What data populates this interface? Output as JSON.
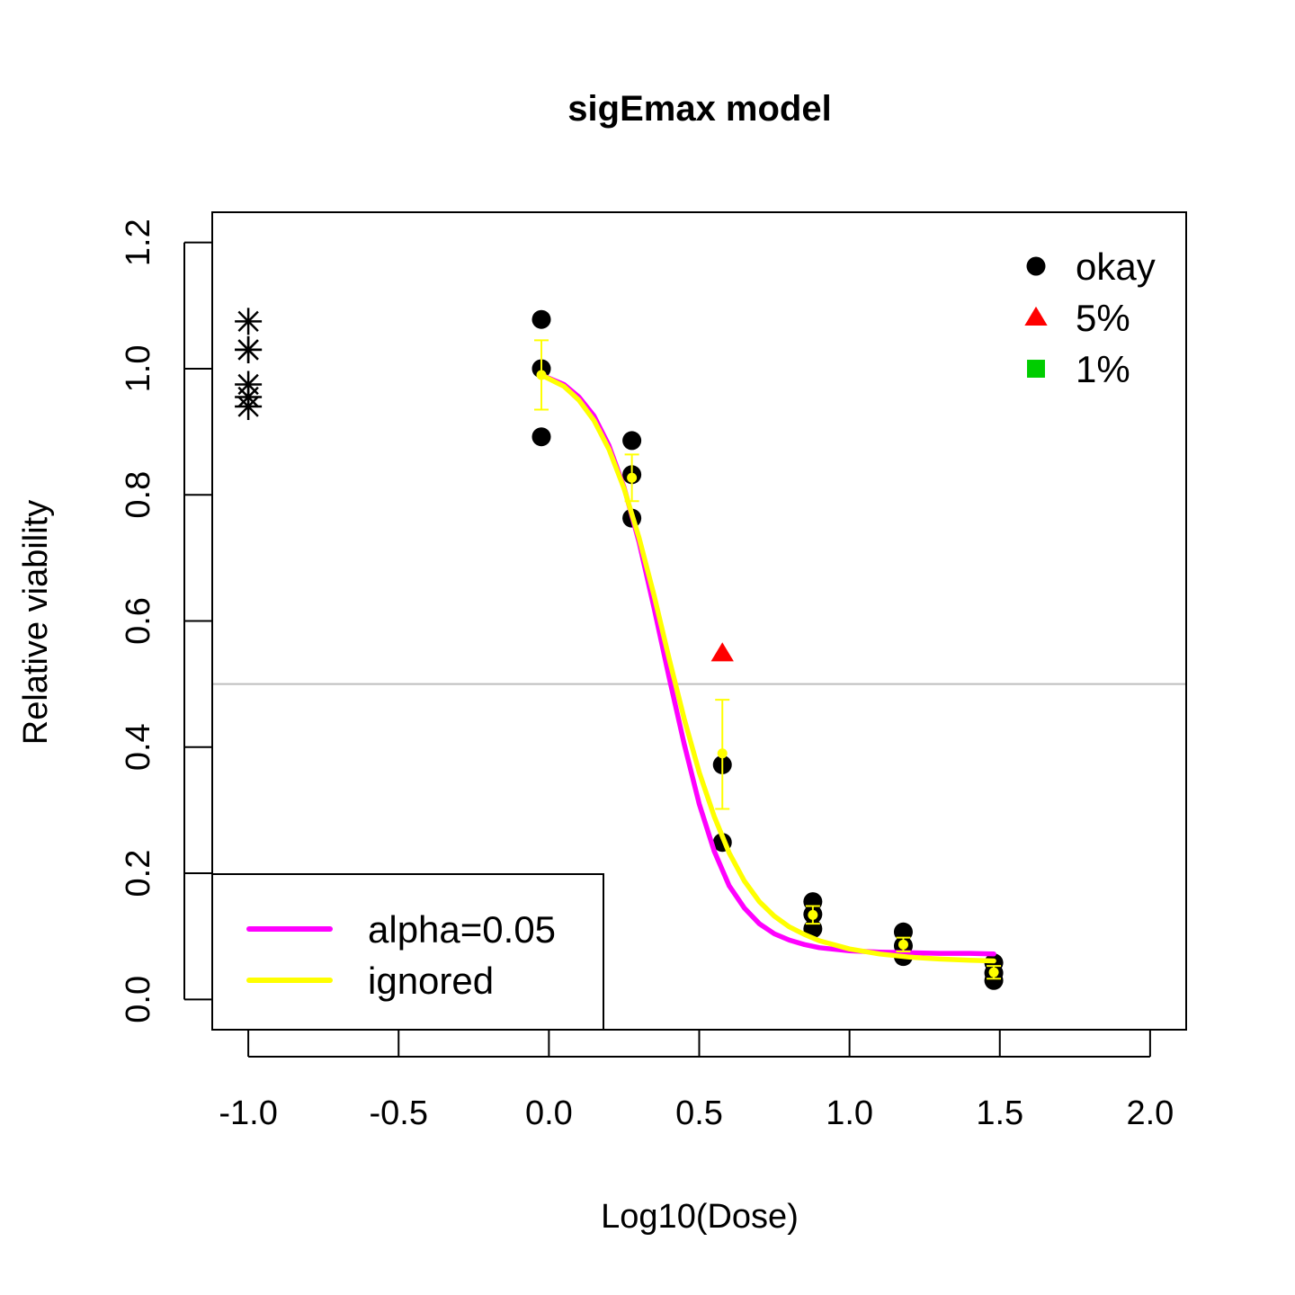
{
  "chart_data": {
    "type": "scatter",
    "title": "sigEmax model",
    "xlabel": "Log10(Dose)",
    "ylabel": "Relative viability",
    "xlim": [
      -1.12,
      2.12
    ],
    "ylim": [
      -0.048,
      1.248
    ],
    "xticks": [
      -1.0,
      -0.5,
      0.0,
      0.5,
      1.0,
      1.5,
      2.0
    ],
    "xtick_labels": [
      "-1.0",
      "-0.5",
      "0.0",
      "0.5",
      "1.0",
      "1.5",
      "2.0"
    ],
    "yticks": [
      0.0,
      0.2,
      0.4,
      0.6,
      0.8,
      1.0,
      1.2
    ],
    "ytick_labels": [
      "0.0",
      "0.2",
      "0.4",
      "0.6",
      "0.8",
      "1.0",
      "1.2"
    ],
    "reference_line": {
      "y": 0.5,
      "color": "#bebebe"
    },
    "control_points": {
      "marker": "asterisk",
      "color": "#000000",
      "x": -1.0,
      "y": [
        1.075,
        1.03,
        1.03,
        0.975,
        0.955,
        0.94
      ]
    },
    "points": [
      {
        "status": "okay",
        "x": -0.025,
        "y": 1.078
      },
      {
        "status": "okay",
        "x": -0.025,
        "y": 1.0
      },
      {
        "status": "okay",
        "x": -0.025,
        "y": 0.892
      },
      {
        "status": "okay",
        "x": 0.276,
        "y": 0.886
      },
      {
        "status": "okay",
        "x": 0.276,
        "y": 0.832
      },
      {
        "status": "okay",
        "x": 0.276,
        "y": 0.763
      },
      {
        "status": "5%",
        "x": 0.577,
        "y": 0.549
      },
      {
        "status": "okay",
        "x": 0.577,
        "y": 0.372
      },
      {
        "status": "okay",
        "x": 0.577,
        "y": 0.249
      },
      {
        "status": "okay",
        "x": 0.878,
        "y": 0.155
      },
      {
        "status": "okay",
        "x": 0.878,
        "y": 0.135
      },
      {
        "status": "okay",
        "x": 0.878,
        "y": 0.112
      },
      {
        "status": "okay",
        "x": 1.179,
        "y": 0.107
      },
      {
        "status": "okay",
        "x": 1.179,
        "y": 0.085
      },
      {
        "status": "okay",
        "x": 1.179,
        "y": 0.068
      },
      {
        "status": "okay",
        "x": 1.48,
        "y": 0.058
      },
      {
        "status": "okay",
        "x": 1.48,
        "y": 0.042
      },
      {
        "status": "okay",
        "x": 1.48,
        "y": 0.03
      }
    ],
    "marker_styles": {
      "okay": {
        "shape": "circle",
        "color": "#000000"
      },
      "5%": {
        "shape": "triangle",
        "color": "#ff0000"
      },
      "1%": {
        "shape": "square",
        "color": "#00cd00"
      }
    },
    "error_bars": {
      "color": "#ffff00",
      "items": [
        {
          "x": -0.025,
          "mean": 0.99,
          "low": 0.935,
          "high": 1.045
        },
        {
          "x": 0.276,
          "mean": 0.827,
          "low": 0.79,
          "high": 0.864
        },
        {
          "x": 0.577,
          "mean": 0.39,
          "low": 0.302,
          "high": 0.475
        },
        {
          "x": 0.878,
          "mean": 0.134,
          "low": 0.12,
          "high": 0.148
        },
        {
          "x": 1.179,
          "mean": 0.087,
          "low": 0.076,
          "high": 0.098
        },
        {
          "x": 1.48,
          "mean": 0.043,
          "low": 0.033,
          "high": 0.053
        }
      ]
    },
    "series": [
      {
        "name": "alpha=0.05",
        "color": "#ff00ff",
        "x": [
          -0.025,
          0.05,
          0.1,
          0.15,
          0.2,
          0.25,
          0.3,
          0.35,
          0.4,
          0.45,
          0.5,
          0.55,
          0.6,
          0.65,
          0.7,
          0.75,
          0.8,
          0.85,
          0.9,
          1.0,
          1.1,
          1.2,
          1.3,
          1.4,
          1.48
        ],
        "y": [
          0.99,
          0.975,
          0.955,
          0.925,
          0.878,
          0.812,
          0.725,
          0.62,
          0.51,
          0.405,
          0.31,
          0.235,
          0.18,
          0.145,
          0.12,
          0.104,
          0.094,
          0.087,
          0.082,
          0.077,
          0.075,
          0.074,
          0.073,
          0.073,
          0.072
        ]
      },
      {
        "name": "ignored",
        "color": "#ffff00",
        "x": [
          -0.025,
          0.05,
          0.1,
          0.15,
          0.2,
          0.25,
          0.3,
          0.35,
          0.4,
          0.45,
          0.5,
          0.55,
          0.6,
          0.65,
          0.7,
          0.75,
          0.8,
          0.85,
          0.9,
          1.0,
          1.1,
          1.2,
          1.3,
          1.4,
          1.48
        ],
        "y": [
          0.99,
          0.972,
          0.95,
          0.918,
          0.872,
          0.81,
          0.732,
          0.64,
          0.54,
          0.445,
          0.36,
          0.29,
          0.232,
          0.188,
          0.155,
          0.132,
          0.115,
          0.103,
          0.093,
          0.08,
          0.072,
          0.067,
          0.064,
          0.062,
          0.061
        ]
      }
    ],
    "legend_points": {
      "position": "top-right",
      "entries": [
        {
          "label": "okay",
          "shape": "circle",
          "color": "#000000"
        },
        {
          "label": "5%",
          "shape": "triangle",
          "color": "#ff0000"
        },
        {
          "label": "1%",
          "shape": "square",
          "color": "#00cd00"
        }
      ]
    },
    "legend_lines": {
      "position": "bottom-left",
      "entries": [
        {
          "label": "alpha=0.05",
          "color": "#ff00ff"
        },
        {
          "label": "ignored",
          "color": "#ffff00"
        }
      ]
    }
  }
}
